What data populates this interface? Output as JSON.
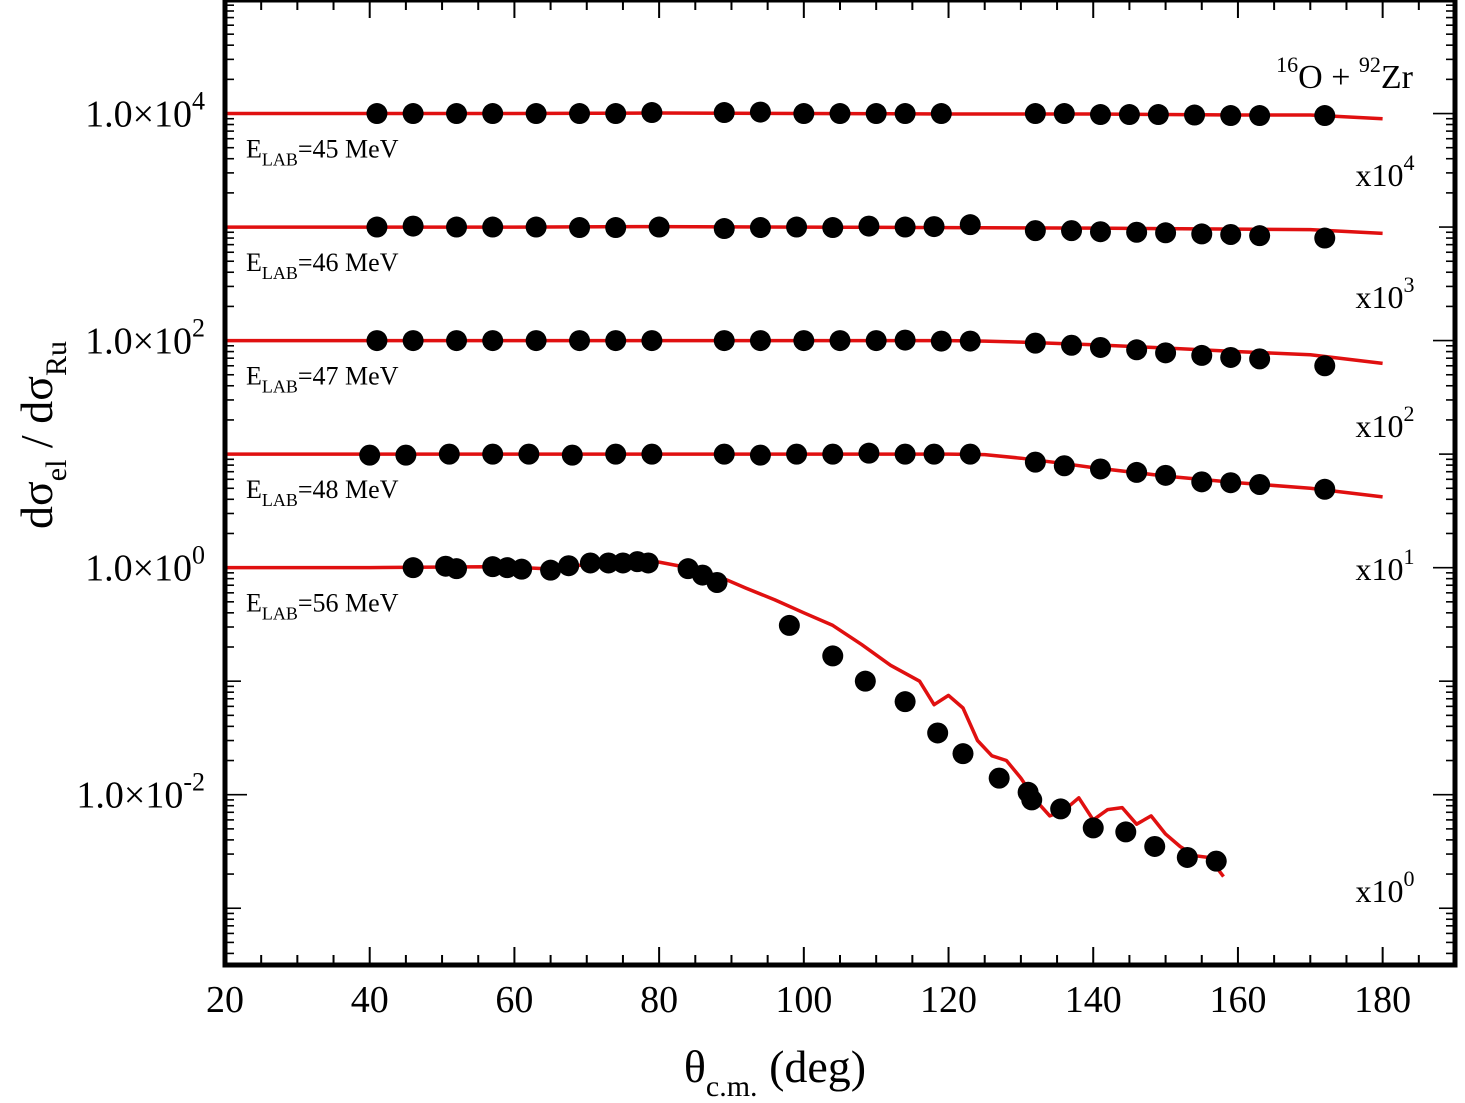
{
  "chart_data": {
    "type": "scatter",
    "title": "",
    "xlabel": {
      "main": "θ",
      "sub": "c.m.",
      "tail": " (deg)"
    },
    "ylabel": {
      "a": "dσ",
      "a_sub": "el",
      "mid": " / dσ",
      "b_sub": "Ru"
    },
    "xlim": [
      20,
      190
    ],
    "ylim_log10": [
      -3.5,
      5
    ],
    "x_ticks": [
      "20",
      "40",
      "60",
      "80",
      "100",
      "120",
      "140",
      "160",
      "180"
    ],
    "y_ticks": [
      {
        "value": 4,
        "label": "1.0×10",
        "exp": "4"
      },
      {
        "value": 2,
        "label": "1.0×10",
        "exp": "2"
      },
      {
        "value": 0,
        "label": "1.0×10",
        "exp": "0"
      },
      {
        "value": -2,
        "label": "1.0×10",
        "exp": "-2"
      }
    ],
    "system_label": {
      "a_mass": "16",
      "a": "O",
      "plus": " + ",
      "b_mass": "92",
      "b": "Zr"
    },
    "series": [
      {
        "name": "E_LAB=45 MeV",
        "label_main": "E",
        "label_sub": "LAB",
        "label_tail": "=45 MeV",
        "scale_main": "x10",
        "scale_exp": "4",
        "multiplier": 10000,
        "data_x": [
          41,
          46,
          52,
          57,
          63,
          69,
          74,
          79,
          89,
          94,
          100,
          105,
          110,
          114,
          119,
          132,
          136,
          141,
          145,
          149,
          154,
          159,
          163,
          172
        ],
        "data_y": [
          1.0,
          1.0,
          1.0,
          1.0,
          1.0,
          1.0,
          1.0,
          1.02,
          1.02,
          1.03,
          1.0,
          1.0,
          1.0,
          1.0,
          1.0,
          1.0,
          1.0,
          0.98,
          0.98,
          0.98,
          0.97,
          0.96,
          0.96,
          0.96
        ],
        "fit_x": [
          20,
          40,
          60,
          80,
          100,
          120,
          140,
          160,
          170,
          180
        ],
        "fit_y": [
          1.0,
          1.0,
          1.0,
          1.01,
          1.0,
          0.99,
          0.99,
          0.97,
          0.97,
          0.9
        ]
      },
      {
        "name": "E_LAB=46 MeV",
        "label_main": "E",
        "label_sub": "LAB",
        "label_tail": "=46 MeV",
        "scale_main": "x10",
        "scale_exp": "3",
        "multiplier": 1000,
        "data_x": [
          41,
          46,
          52,
          57,
          63,
          69,
          74,
          80,
          89,
          94,
          99,
          104,
          109,
          114,
          118,
          123,
          132,
          137,
          141,
          146,
          150,
          155,
          159,
          163,
          172
        ],
        "data_y": [
          1.0,
          1.02,
          1.0,
          1.0,
          1.0,
          0.99,
          0.99,
          1.0,
          0.97,
          0.99,
          1.0,
          0.99,
          1.02,
          1.0,
          1.01,
          1.05,
          0.93,
          0.93,
          0.91,
          0.9,
          0.89,
          0.87,
          0.86,
          0.84,
          0.8
        ]
      },
      {
        "name": "E_LAB=47 MeV",
        "label_main": "E",
        "label_sub": "LAB",
        "label_tail": "=47 MeV",
        "scale_main": "x10",
        "scale_exp": "2",
        "multiplier": 100,
        "data_x": [
          41,
          46,
          52,
          57,
          63,
          69,
          74,
          79,
          89,
          94,
          100,
          105,
          110,
          114,
          119,
          123,
          132,
          137,
          141,
          146,
          150,
          155,
          159,
          163,
          172
        ],
        "data_y": [
          1.0,
          1.0,
          1.0,
          1.0,
          1.0,
          1.0,
          1.0,
          1.0,
          1.0,
          1.0,
          1.0,
          1.0,
          1.0,
          1.01,
          0.99,
          0.99,
          0.95,
          0.91,
          0.87,
          0.83,
          0.78,
          0.74,
          0.71,
          0.69,
          0.6
        ],
        "fit_x": [
          20,
          40,
          60,
          80,
          100,
          120,
          125,
          130,
          140,
          150,
          160,
          170,
          180
        ],
        "fit_y": [
          1.0,
          1.0,
          1.0,
          1.0,
          1.0,
          1.0,
          0.99,
          0.97,
          0.92,
          0.86,
          0.8,
          0.75,
          0.63
        ]
      },
      {
        "name": "E_LAB=48 MeV",
        "label_main": "E",
        "label_sub": "LAB",
        "label_tail": "=48 MeV",
        "scale_main": "x10",
        "scale_exp": "1",
        "multiplier": 10,
        "data_x": [
          40,
          45,
          51,
          57,
          62,
          68,
          74,
          79,
          89,
          94,
          99,
          104,
          109,
          114,
          118,
          123,
          132,
          136,
          141,
          146,
          150,
          155,
          159,
          163,
          172
        ],
        "data_y": [
          0.98,
          0.98,
          1.0,
          1.0,
          1.0,
          0.98,
          1.0,
          1.0,
          1.0,
          0.98,
          1.0,
          1.0,
          1.02,
          1.0,
          1.0,
          1.0,
          0.85,
          0.79,
          0.74,
          0.69,
          0.65,
          0.57,
          0.56,
          0.54,
          0.49
        ],
        "fit_x": [
          20,
          40,
          60,
          80,
          100,
          120,
          125,
          130,
          135,
          140,
          150,
          160,
          170,
          180
        ],
        "fit_y": [
          1.0,
          1.0,
          1.0,
          1.0,
          1.0,
          1.0,
          0.99,
          0.92,
          0.84,
          0.76,
          0.64,
          0.56,
          0.5,
          0.42
        ]
      },
      {
        "name": "E_LAB=56 MeV",
        "label_main": "E",
        "label_sub": "LAB",
        "label_tail": "=56 MeV",
        "scale_main": "x10",
        "scale_exp": "0",
        "multiplier": 1,
        "data_x": [
          46,
          50.5,
          52,
          57,
          59,
          61,
          65,
          67.5,
          70.5,
          73,
          75,
          77,
          78.5,
          84,
          86,
          88,
          98,
          104,
          108.5,
          114,
          118.5,
          122,
          127,
          131,
          131.5,
          135.5,
          140,
          144.5,
          148.5,
          153,
          157
        ],
        "data_y": [
          1.0,
          1.03,
          0.98,
          1.02,
          1.0,
          0.97,
          0.95,
          1.04,
          1.1,
          1.1,
          1.1,
          1.13,
          1.1,
          0.98,
          0.86,
          0.74,
          0.31,
          0.167,
          0.1,
          0.066,
          0.035,
          0.023,
          0.014,
          0.0105,
          0.009,
          0.0075,
          0.0051,
          0.0047,
          0.0035,
          0.0028,
          0.0026
        ],
        "fit_x": [
          20,
          40,
          56,
          60,
          64,
          68,
          72,
          76,
          80,
          84,
          88,
          92,
          96,
          100,
          104,
          108,
          112,
          116,
          118,
          120,
          122,
          124,
          126,
          128,
          130,
          132,
          134,
          136,
          138,
          140,
          142,
          144,
          146,
          148,
          150,
          152,
          154,
          156,
          158
        ],
        "fit_y": [
          1.0,
          1.0,
          1.02,
          1.01,
          0.98,
          1.04,
          1.08,
          1.15,
          1.12,
          1.0,
          0.85,
          0.66,
          0.52,
          0.4,
          0.31,
          0.21,
          0.138,
          0.1,
          0.062,
          0.075,
          0.058,
          0.03,
          0.022,
          0.02,
          0.014,
          0.009,
          0.0065,
          0.0073,
          0.0094,
          0.006,
          0.0074,
          0.0077,
          0.0055,
          0.0065,
          0.0045,
          0.0035,
          0.0029,
          0.0028,
          0.0019
        ]
      }
    ]
  }
}
